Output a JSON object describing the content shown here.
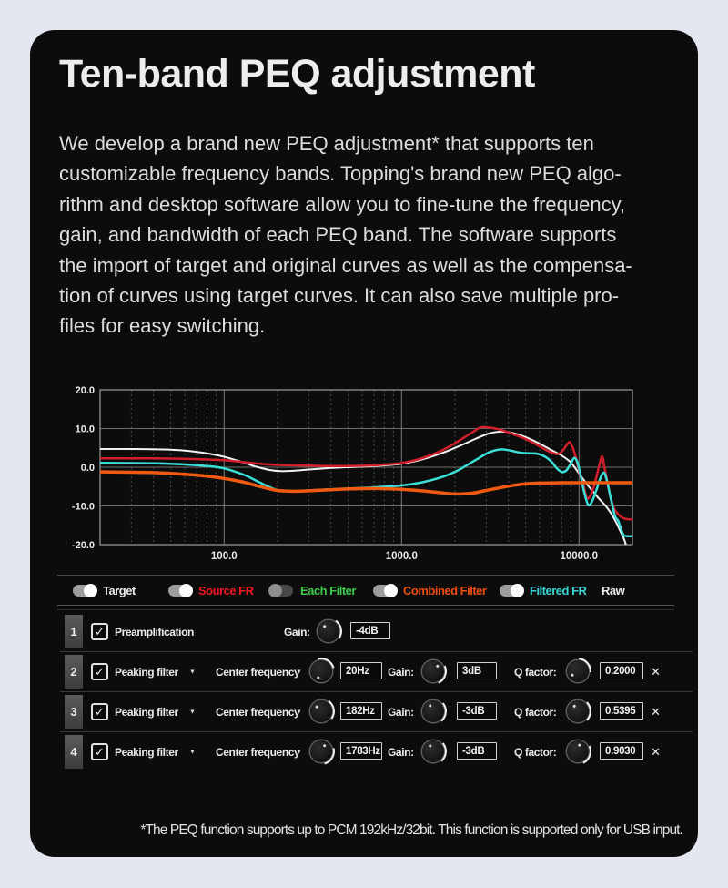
{
  "page": {
    "background": "#e4e6f0",
    "card_background": "#0c0c0c"
  },
  "title": "Ten-band PEQ adjustment",
  "intro": "We develop a brand new PEQ adjustment* that supports ten\ncustomizable frequency bands. Topping's brand new PEQ algo-\nrithm and desktop software allow you to fine-tune the frequency,\ngain, and bandwidth of each PEQ band. The software supports\nthe import of target and original curves as well as the compensa-\ntion of curves using target curves. It can also save multiple pro-\nfiles for easy switching.",
  "icons": {
    "check": "✓",
    "caret_down": "▼",
    "close": "✕"
  },
  "chart_data": {
    "type": "line",
    "x_axis": {
      "scale": "log",
      "min": 20,
      "max": 20000,
      "ticks": [
        100,
        1000,
        10000
      ],
      "tick_labels": [
        "100.0",
        "1000.0",
        "10000.0"
      ],
      "unit": "Hz"
    },
    "y_axis": {
      "min": -20,
      "max": 20,
      "ticks": [
        20,
        10,
        0,
        -10,
        -20
      ],
      "tick_labels": [
        "20.0",
        "10.0",
        "0.0",
        "-10.0",
        "-20.0"
      ],
      "unit": "dB"
    },
    "grid": {
      "h_lines": [
        10,
        0,
        -10
      ],
      "v_solid": [
        100,
        1000,
        10000
      ],
      "v_dashed_log_minors": true
    },
    "series": [
      {
        "name": "Target",
        "color": "#f2f2f2",
        "width": 2,
        "points": [
          [
            20,
            4.7
          ],
          [
            30,
            4.7
          ],
          [
            45,
            4.6
          ],
          [
            60,
            4.3
          ],
          [
            80,
            3.6
          ],
          [
            100,
            2.7
          ],
          [
            125,
            1.4
          ],
          [
            150,
            0.2
          ],
          [
            180,
            -0.7
          ],
          [
            210,
            -1.0
          ],
          [
            250,
            -0.9
          ],
          [
            300,
            -0.6
          ],
          [
            400,
            -0.2
          ],
          [
            500,
            0.0
          ],
          [
            700,
            0.3
          ],
          [
            1000,
            0.9
          ],
          [
            1300,
            2.0
          ],
          [
            1700,
            3.7
          ],
          [
            2100,
            5.4
          ],
          [
            2600,
            7.3
          ],
          [
            3100,
            8.7
          ],
          [
            3600,
            9.2
          ],
          [
            4100,
            9.0
          ],
          [
            5000,
            7.8
          ],
          [
            6000,
            6.1
          ],
          [
            7000,
            4.4
          ],
          [
            8000,
            3.0
          ],
          [
            9000,
            1.2
          ],
          [
            10000,
            -1.6
          ],
          [
            11000,
            -4.2
          ],
          [
            12000,
            -6.3
          ],
          [
            13000,
            -8.2
          ],
          [
            14000,
            -9.8
          ],
          [
            15000,
            -11.6
          ],
          [
            16000,
            -13.8
          ],
          [
            17000,
            -16.3
          ],
          [
            18000,
            -18.8
          ],
          [
            18800,
            -21.5
          ]
        ]
      },
      {
        "name": "Source FR",
        "color": "#d21e2b",
        "width": 2.5,
        "points": [
          [
            20,
            2.3
          ],
          [
            40,
            2.3
          ],
          [
            60,
            2.2
          ],
          [
            80,
            2.0
          ],
          [
            100,
            1.8
          ],
          [
            130,
            1.3
          ],
          [
            160,
            0.9
          ],
          [
            200,
            0.6
          ],
          [
            250,
            0.5
          ],
          [
            300,
            0.4
          ],
          [
            400,
            0.3
          ],
          [
            500,
            0.3
          ],
          [
            700,
            0.5
          ],
          [
            1000,
            1.1
          ],
          [
            1300,
            2.3
          ],
          [
            1700,
            4.4
          ],
          [
            2100,
            6.8
          ],
          [
            2500,
            9.0
          ],
          [
            2800,
            10.3
          ],
          [
            3200,
            10.2
          ],
          [
            3600,
            9.7
          ],
          [
            4000,
            9.0
          ],
          [
            5000,
            7.3
          ],
          [
            6000,
            5.4
          ],
          [
            6600,
            4.3
          ],
          [
            7200,
            3.6
          ],
          [
            7600,
            3.4
          ],
          [
            8100,
            4.3
          ],
          [
            8600,
            6.0
          ],
          [
            8900,
            6.4
          ],
          [
            9300,
            4.6
          ],
          [
            9700,
            1.6
          ],
          [
            10100,
            -1.6
          ],
          [
            10600,
            -4.8
          ],
          [
            11100,
            -8.0
          ],
          [
            11700,
            -7.0
          ],
          [
            12300,
            -4.0
          ],
          [
            13000,
            0.5
          ],
          [
            13500,
            2.8
          ],
          [
            13900,
            0.0
          ],
          [
            14400,
            -3.5
          ],
          [
            15000,
            -7.5
          ],
          [
            15700,
            -10.5
          ],
          [
            16500,
            -12.0
          ],
          [
            17500,
            -13.0
          ],
          [
            18500,
            -13.4
          ],
          [
            20000,
            -13.5
          ]
        ]
      },
      {
        "name": "Filtered FR",
        "color": "#3adfd8",
        "width": 2.5,
        "points": [
          [
            20,
            1.1
          ],
          [
            40,
            1.0
          ],
          [
            60,
            0.7
          ],
          [
            80,
            0.3
          ],
          [
            100,
            -0.3
          ],
          [
            130,
            -2.0
          ],
          [
            160,
            -4.0
          ],
          [
            200,
            -5.9
          ],
          [
            250,
            -6.2
          ],
          [
            300,
            -6.0
          ],
          [
            400,
            -5.7
          ],
          [
            500,
            -5.5
          ],
          [
            700,
            -5.2
          ],
          [
            1000,
            -4.7
          ],
          [
            1300,
            -3.9
          ],
          [
            1700,
            -2.5
          ],
          [
            2100,
            -0.7
          ],
          [
            2600,
            1.8
          ],
          [
            3100,
            3.8
          ],
          [
            3600,
            4.6
          ],
          [
            4100,
            4.3
          ],
          [
            4600,
            3.8
          ],
          [
            5200,
            3.6
          ],
          [
            5800,
            3.5
          ],
          [
            6400,
            2.8
          ],
          [
            7000,
            1.4
          ],
          [
            7500,
            -0.3
          ],
          [
            8000,
            -1.2
          ],
          [
            8500,
            -0.8
          ],
          [
            9000,
            1.0
          ],
          [
            9400,
            2.4
          ],
          [
            9800,
            1.2
          ],
          [
            10200,
            -2.0
          ],
          [
            10700,
            -6.5
          ],
          [
            11300,
            -9.8
          ],
          [
            11900,
            -8.6
          ],
          [
            12500,
            -6.0
          ],
          [
            13200,
            -2.8
          ],
          [
            13800,
            -1.4
          ],
          [
            14300,
            -3.2
          ],
          [
            14800,
            -6.2
          ],
          [
            15400,
            -9.8
          ],
          [
            16000,
            -12.8
          ],
          [
            16600,
            -13.8
          ],
          [
            17200,
            -15.8
          ],
          [
            17800,
            -17.5
          ],
          [
            18600,
            -17.8
          ],
          [
            20000,
            -17.8
          ]
        ]
      },
      {
        "name": "Combined Filter",
        "color": "#f05a10",
        "width": 3.5,
        "points": [
          [
            20,
            -1.2
          ],
          [
            40,
            -1.4
          ],
          [
            60,
            -1.8
          ],
          [
            80,
            -2.3
          ],
          [
            100,
            -2.9
          ],
          [
            130,
            -3.9
          ],
          [
            160,
            -5.0
          ],
          [
            200,
            -6.0
          ],
          [
            250,
            -6.2
          ],
          [
            300,
            -6.1
          ],
          [
            400,
            -5.8
          ],
          [
            500,
            -5.6
          ],
          [
            700,
            -5.5
          ],
          [
            1000,
            -5.7
          ],
          [
            1300,
            -6.1
          ],
          [
            1600,
            -6.5
          ],
          [
            2000,
            -6.9
          ],
          [
            2500,
            -6.7
          ],
          [
            3000,
            -6.0
          ],
          [
            4000,
            -4.9
          ],
          [
            5000,
            -4.3
          ],
          [
            6000,
            -4.1
          ],
          [
            8000,
            -4.0
          ],
          [
            10000,
            -4.0
          ],
          [
            14000,
            -4.0
          ],
          [
            20000,
            -4.0
          ]
        ]
      }
    ]
  },
  "legend": {
    "items": [
      {
        "label": "Target",
        "color": "#e9e9e9",
        "toggle": true,
        "state": "on"
      },
      {
        "label": "Source FR",
        "color": "#f01622",
        "toggle": true,
        "state": "on"
      },
      {
        "label": "Each Filter",
        "color": "#3fca4a",
        "toggle": true,
        "state": "off"
      },
      {
        "label": "Combined Filter",
        "color": "#ee4d12",
        "toggle": true,
        "state": "on"
      },
      {
        "label": "Filtered FR",
        "color": "#38d6d2",
        "toggle": true,
        "state": "on"
      },
      {
        "label": "Raw",
        "color": "#e9e9e9",
        "toggle": false,
        "state": ""
      }
    ]
  },
  "filters": {
    "rows": [
      {
        "num": "1",
        "checked": true,
        "type": "Preamplification",
        "type_dropdown": false,
        "removable": false,
        "fields": [
          {
            "key": "gain",
            "label": "Gain:",
            "value": "-4dB",
            "dropdown": false
          }
        ]
      },
      {
        "num": "2",
        "checked": true,
        "type": "Peaking filter",
        "type_dropdown": true,
        "removable": true,
        "fields": [
          {
            "key": "freq",
            "label": "Center frequency",
            "value": "20Hz",
            "dropdown": true
          },
          {
            "key": "gain",
            "label": "Gain:",
            "value": "3dB",
            "dropdown": false
          },
          {
            "key": "q",
            "label": "Q factor:",
            "value": "0.2000",
            "dropdown": false
          }
        ]
      },
      {
        "num": "3",
        "checked": true,
        "type": "Peaking filter",
        "type_dropdown": true,
        "removable": true,
        "fields": [
          {
            "key": "freq",
            "label": "Center frequency",
            "value": "182Hz",
            "dropdown": true
          },
          {
            "key": "gain",
            "label": "Gain:",
            "value": "-3dB",
            "dropdown": false
          },
          {
            "key": "q",
            "label": "Q factor:",
            "value": "0.5395",
            "dropdown": false
          }
        ]
      },
      {
        "num": "4",
        "checked": true,
        "type": "Peaking filter",
        "type_dropdown": true,
        "removable": true,
        "fields": [
          {
            "key": "freq",
            "label": "Center frequency",
            "value": "1783Hz",
            "dropdown": true
          },
          {
            "key": "gain",
            "label": "Gain:",
            "value": "-3dB",
            "dropdown": false
          },
          {
            "key": "q",
            "label": "Q factor:",
            "value": "0.9030",
            "dropdown": false
          }
        ]
      }
    ]
  },
  "footnote": "*The PEQ function supports up to PCM 192kHz/32bit. This function is supported only for USB input."
}
